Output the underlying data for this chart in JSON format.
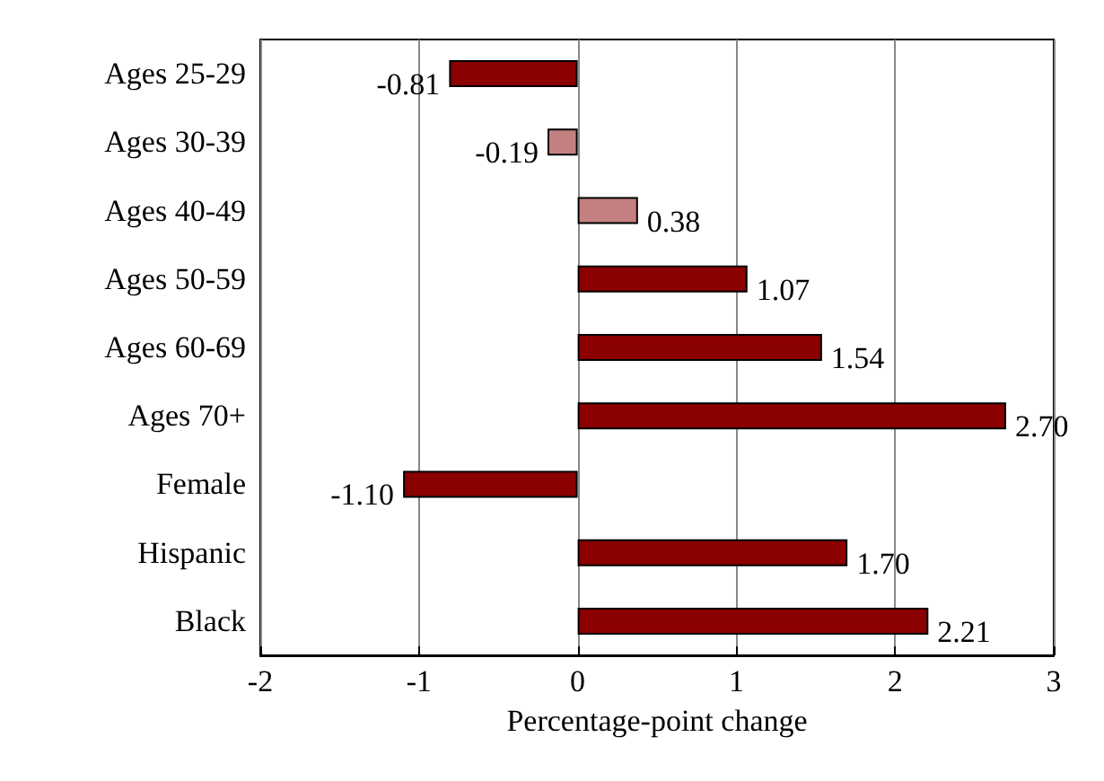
{
  "chart_data": {
    "type": "bar",
    "orientation": "horizontal",
    "xlabel": "Percentage-point change",
    "categories": [
      "Ages 25-29",
      "Ages 30-39",
      "Ages 40-49",
      "Ages 50-59",
      "Ages 60-69",
      "Ages 70+",
      "Female",
      "Hispanic",
      "Black"
    ],
    "values": [
      -0.81,
      -0.19,
      0.38,
      1.07,
      1.54,
      2.7,
      -1.1,
      1.7,
      2.21
    ],
    "value_labels": [
      "-0.81",
      "-0.19",
      "0.38",
      "1.07",
      "1.54",
      "2.70",
      "-1.10",
      "1.70",
      "2.21"
    ],
    "colors": [
      "#8b0000",
      "#c48080",
      "#c48080",
      "#8b0000",
      "#8b0000",
      "#8b0000",
      "#8b0000",
      "#8b0000",
      "#8b0000"
    ],
    "xlim": [
      -2,
      3
    ],
    "xticks": [
      -2,
      -1,
      0,
      1,
      2,
      3
    ],
    "grid": "x"
  }
}
